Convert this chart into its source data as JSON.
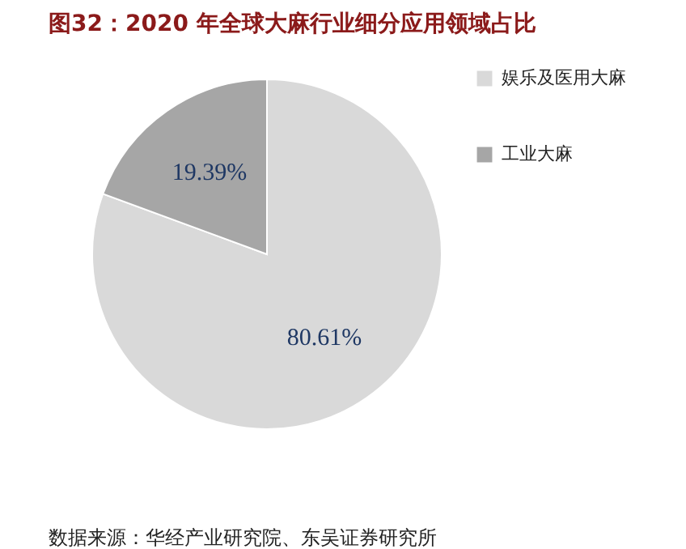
{
  "chart_data": {
    "type": "pie",
    "title": "图32：2020 年全球大麻行业细分应用领域占比",
    "categories": [
      "娱乐及医用大麻",
      "工业大麻"
    ],
    "values": [
      80.61,
      19.39
    ],
    "colors": [
      "#d9d9d9",
      "#a6a6a6"
    ],
    "value_labels": [
      "80.61%",
      "19.39%"
    ],
    "legend": "right",
    "annotations": [
      "数据来源：华经产业研究院、东吴证券研究所"
    ]
  }
}
